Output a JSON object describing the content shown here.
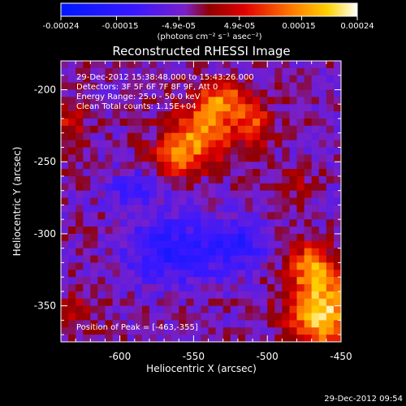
{
  "chart_data": {
    "type": "heatmap",
    "title": "Reconstructed RHESSI Image",
    "xlabel": "Heliocentric X (arcsec)",
    "ylabel": "Heliocentric Y (arcsec)",
    "xlim": [
      -640,
      -450
    ],
    "ylim": [
      -375,
      -180
    ],
    "xticks": [
      -600,
      -550,
      -500,
      -450
    ],
    "yticks": [
      -200,
      -250,
      -300,
      -350
    ],
    "colorbar": {
      "ticks": [
        "-0.00024",
        "-0.00015",
        "-4.9e-05",
        "4.9e-05",
        "0.00015",
        "0.00024"
      ],
      "tick_values": [
        -0.00024,
        -0.00015,
        -4.9e-05,
        4.9e-05,
        0.00015,
        0.00024
      ],
      "range": [
        -0.00024,
        0.00024
      ],
      "units_line": "(photons cm⁻² s⁻¹ asec⁻²)"
    },
    "annotations": [
      "29-Dec-2012 15:38:48.000 to 15:43:26.000",
      "Detectors: 3F 5F 6F 7F 8F 9F, Att 0",
      "Energy Range: 25.0 - 50.0 keV",
      "Clean    Total counts: 1.15E+04"
    ],
    "peak_label": "Position of Peak = [-463,-355]",
    "footer": "29-Dec-2012 09:54",
    "sources": [
      {
        "x": -545,
        "y": -232,
        "sx": 16,
        "sy": 13,
        "amp": 0.00018
      },
      {
        "x": -530,
        "y": -208,
        "sx": 13,
        "sy": 10,
        "amp": 0.00016
      },
      {
        "x": -563,
        "y": -248,
        "sx": 11,
        "sy": 9,
        "amp": 0.00013
      },
      {
        "x": -508,
        "y": -225,
        "sx": 9,
        "sy": 10,
        "amp": 0.00011
      },
      {
        "x": -463,
        "y": -355,
        "sx": 16,
        "sy": 18,
        "amp": 0.00024
      },
      {
        "x": -470,
        "y": -322,
        "sx": 10,
        "sy": 12,
        "amp": 0.00016
      },
      {
        "x": -635,
        "y": -222,
        "sx": 9,
        "sy": 10,
        "amp": 9e-05
      },
      {
        "x": -628,
        "y": -352,
        "sx": 9,
        "sy": 9,
        "amp": 7e-05
      },
      {
        "x": -480,
        "y": -265,
        "sx": 8,
        "sy": 8,
        "amp": 5e-05
      }
    ],
    "sinks": [
      {
        "x": -565,
        "y": -312,
        "sx": 20,
        "sy": 16,
        "amp": -0.00012
      },
      {
        "x": -522,
        "y": -308,
        "sx": 14,
        "sy": 12,
        "amp": -0.00011
      },
      {
        "x": -590,
        "y": -268,
        "sx": 12,
        "sy": 9,
        "amp": -8e-05
      }
    ]
  }
}
